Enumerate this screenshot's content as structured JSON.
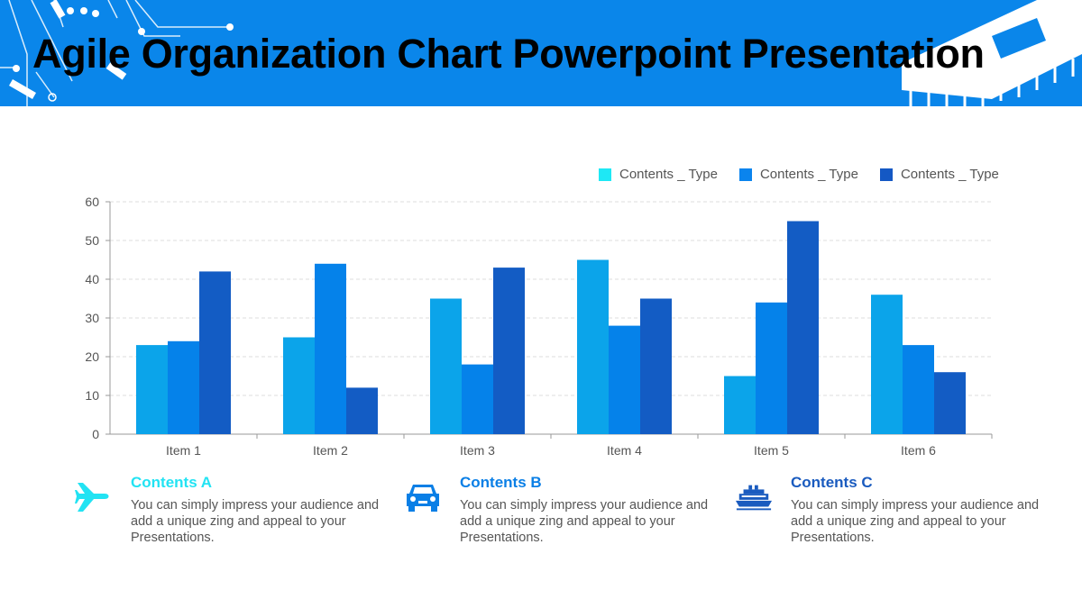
{
  "header": {
    "title": "Agile Organization Chart Powerpoint Presentation",
    "background": "#0a86ea"
  },
  "chart_data": {
    "type": "bar",
    "categories": [
      "Item 1",
      "Item 2",
      "Item 3",
      "Item 4",
      "Item 5",
      "Item 6"
    ],
    "series": [
      {
        "name": "Contents _ Type",
        "color": "#0ba4ea",
        "legend_color": "#1ee8f5",
        "values": [
          23,
          25,
          35,
          45,
          15,
          36
        ]
      },
      {
        "name": "Contents _ Type",
        "color": "#0582ea",
        "legend_color": "#0a84ee",
        "values": [
          24,
          44,
          18,
          28,
          34,
          23
        ]
      },
      {
        "name": "Contents _ Type",
        "color": "#135cc4",
        "legend_color": "#1458c4",
        "values": [
          42,
          12,
          43,
          35,
          55,
          16
        ]
      }
    ],
    "ylim": [
      0,
      60
    ],
    "yticks": [
      "0",
      "10",
      "20",
      "30",
      "40",
      "50",
      "60"
    ],
    "grid": true,
    "legend": "top-right"
  },
  "cards": [
    {
      "title": "Contents A",
      "color": "#22e3f3",
      "icon": "airplane-icon",
      "text": "You can simply impress your audience and add a unique zing and appeal to your Presentations."
    },
    {
      "title": "Contents B",
      "color": "#0a7fe6",
      "icon": "car-icon",
      "text": "You can simply impress your audience and add a unique zing and appeal to your Presentations."
    },
    {
      "title": "Contents C",
      "color": "#1a5bbf",
      "icon": "ship-icon",
      "text": "You can simply impress your audience and add a unique zing and appeal to your Presentations."
    }
  ]
}
